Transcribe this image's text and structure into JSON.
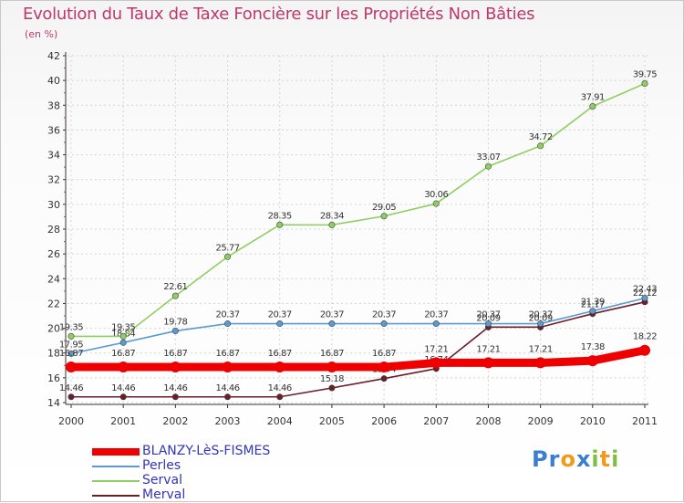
{
  "title": "Evolution du Taux de Taxe Foncière sur les Propriétés Non Bâties",
  "unit_label": "(en %)",
  "logo": {
    "text": "Proxiti",
    "letters": [
      {
        "ch": "P",
        "color": "#3a7fd0"
      },
      {
        "ch": "r",
        "color": "#3a7fd0"
      },
      {
        "ch": "o",
        "color": "#f29a1a"
      },
      {
        "ch": "x",
        "color": "#3a7fd0"
      },
      {
        "ch": "i",
        "color": "#7cc142"
      },
      {
        "ch": "t",
        "color": "#f29a1a"
      },
      {
        "ch": "i",
        "color": "#7cc142"
      }
    ]
  },
  "chart_data": {
    "type": "line",
    "title": "Evolution du Taux de Taxe Foncière sur les Propriétés Non Bâties",
    "ylabel": "(en %)",
    "xlabel": "",
    "ylim": [
      14,
      42
    ],
    "yticks": [
      14,
      16,
      18,
      20,
      22,
      24,
      26,
      28,
      30,
      32,
      34,
      36,
      38,
      40,
      42
    ],
    "x": [
      "2000",
      "2001",
      "2002",
      "2003",
      "2004",
      "2005",
      "2006",
      "2007",
      "2008",
      "2009",
      "2010",
      "2011"
    ],
    "grid": true,
    "legend_position": "bottom-left",
    "series": [
      {
        "name": "Merval",
        "color": "#6b1e2a",
        "values": [
          14.46,
          14.46,
          14.46,
          14.46,
          14.46,
          15.18,
          15.94,
          16.74,
          20.09,
          20.09,
          21.17,
          22.12
        ],
        "labels": [
          "14.46",
          "14.46",
          "14.46",
          "14.46",
          "14.46",
          "15.18",
          "15.94",
          "16.74",
          "20.09",
          "20.09",
          "21.17",
          "22.12"
        ]
      },
      {
        "name": "Perles",
        "color": "#5b9bd0",
        "values": [
          17.95,
          18.84,
          19.78,
          20.37,
          20.37,
          20.37,
          20.37,
          20.37,
          20.37,
          20.37,
          21.39,
          22.43
        ],
        "labels": [
          "17.95",
          "18.84",
          "19.78",
          "20.37",
          "20.37",
          "20.37",
          "20.37",
          "20.37",
          "20.37",
          "20.37",
          "21.39",
          "22.43"
        ]
      },
      {
        "name": "Serval",
        "color": "#8fce60",
        "values": [
          19.35,
          19.35,
          22.61,
          25.77,
          28.35,
          28.34,
          29.05,
          30.06,
          33.07,
          34.72,
          37.91,
          39.75
        ],
        "labels": [
          "19.35",
          "19.35",
          "22.61",
          "25.77",
          "28.35",
          "28.34",
          "29.05",
          "30.06",
          "33.07",
          "34.72",
          "37.91",
          "39.75"
        ]
      },
      {
        "name": "BLANZY-LèS-FISMES",
        "color": "#ee0000",
        "values": [
          16.87,
          16.87,
          16.87,
          16.87,
          16.87,
          16.87,
          16.87,
          17.21,
          17.21,
          17.21,
          17.38,
          18.22
        ],
        "labels": [
          "16.87",
          "16.87",
          "16.87",
          "16.87",
          "16.87",
          "16.87",
          "16.87",
          "17.21",
          "17.21",
          "17.21",
          "17.38",
          "18.22"
        ]
      }
    ],
    "legend_order": [
      "BLANZY-LèS-FISMES",
      "Perles",
      "Serval",
      "Merval"
    ]
  }
}
